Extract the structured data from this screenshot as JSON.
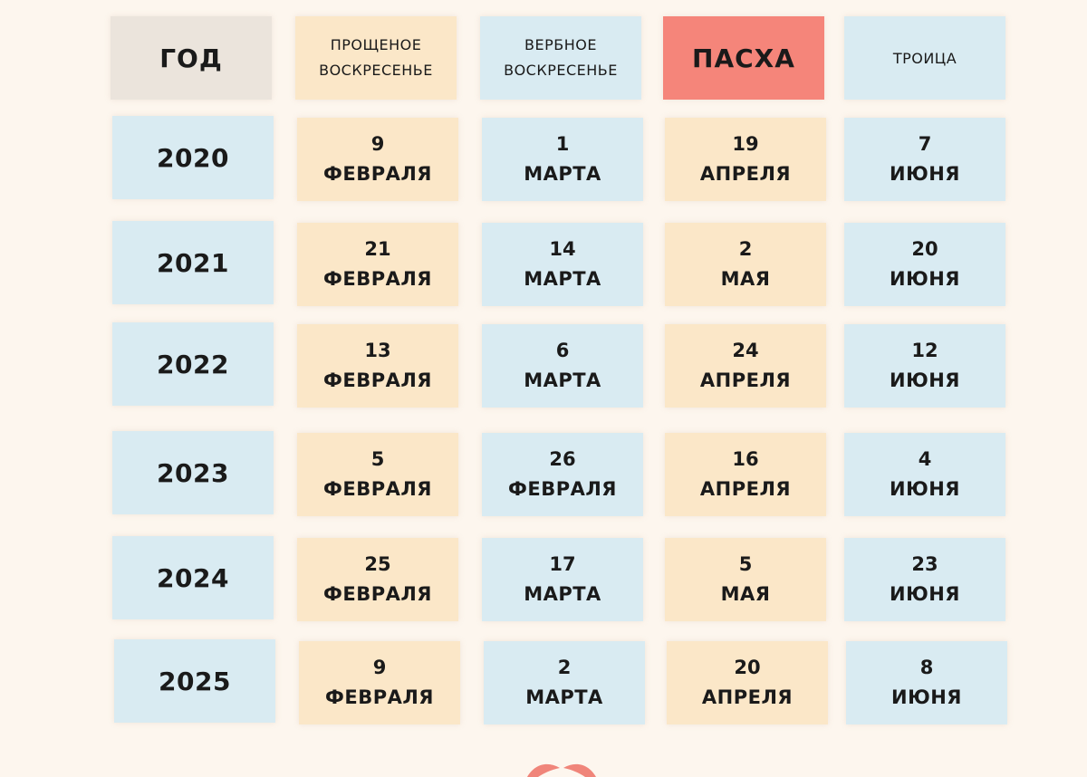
{
  "headers": {
    "year": "ГОД",
    "forgiveness_line1": "ПРОЩЕНОЕ",
    "forgiveness_line2": "ВОСКРЕСЕНЬЕ",
    "palm_line1": "ВЕРБНОЕ",
    "palm_line2": "ВОСКРЕСЕНЬЕ",
    "easter": "ПАСХА",
    "trinity": "ТРОИЦА"
  },
  "rows": [
    {
      "year": "2020",
      "forgiveness": {
        "day": "9",
        "month": "ФЕВРАЛЯ"
      },
      "palm": {
        "day": "1",
        "month": "МАРТА"
      },
      "easter": {
        "day": "19",
        "month": "АПРЕЛЯ"
      },
      "trinity": {
        "day": "7",
        "month": "ИЮНЯ"
      }
    },
    {
      "year": "2021",
      "forgiveness": {
        "day": "21",
        "month": "ФЕВРАЛЯ"
      },
      "palm": {
        "day": "14",
        "month": "МАРТА"
      },
      "easter": {
        "day": "2",
        "month": "МАЯ"
      },
      "trinity": {
        "day": "20",
        "month": "ИЮНЯ"
      }
    },
    {
      "year": "2022",
      "forgiveness": {
        "day": "13",
        "month": "ФЕВРАЛЯ"
      },
      "palm": {
        "day": "6",
        "month": "МАРТА"
      },
      "easter": {
        "day": "24",
        "month": "АПРЕЛЯ"
      },
      "trinity": {
        "day": "12",
        "month": "ИЮНЯ"
      }
    },
    {
      "year": "2023",
      "forgiveness": {
        "day": "5",
        "month": "ФЕВРАЛЯ"
      },
      "palm": {
        "day": "26",
        "month": "ФЕВРАЛЯ"
      },
      "easter": {
        "day": "16",
        "month": "АПРЕЛЯ"
      },
      "trinity": {
        "day": "4",
        "month": "ИЮНЯ"
      }
    },
    {
      "year": "2024",
      "forgiveness": {
        "day": "25",
        "month": "ФЕВРАЛЯ"
      },
      "palm": {
        "day": "17",
        "month": "МАРТА"
      },
      "easter": {
        "day": "5",
        "month": "МАЯ"
      },
      "trinity": {
        "day": "23",
        "month": "ИЮНЯ"
      }
    },
    {
      "year": "2025",
      "forgiveness": {
        "day": "9",
        "month": "ФЕВРАЛЯ"
      },
      "palm": {
        "day": "2",
        "month": "МАРТА"
      },
      "easter": {
        "day": "20",
        "month": "АПРЕЛЯ"
      },
      "trinity": {
        "day": "8",
        "month": "ИЮНЯ"
      }
    }
  ],
  "colors": {
    "background": "#fdf6ee",
    "blue_cell": "#d9ebf2",
    "peach_cell": "#fbe7c8",
    "header_year_cell": "#ebe4dc",
    "easter_header_cell": "#f5857a",
    "logo": "#f0857a"
  },
  "icons": {
    "bottom_logo": "leaf-logo-icon"
  }
}
